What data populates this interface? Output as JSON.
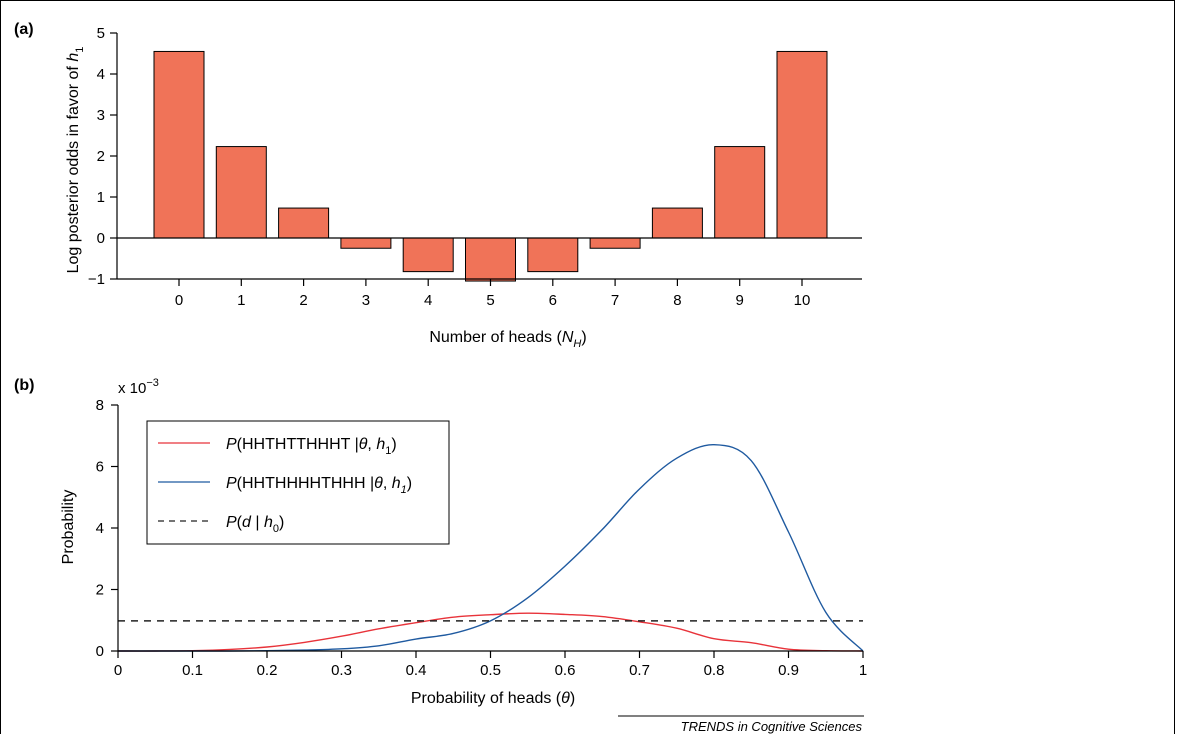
{
  "colors": {
    "bar_fill": "#f07358",
    "red_curve": "#e8333a",
    "blue_curve": "#1f5aa0",
    "dashed": "#222222"
  },
  "panels": {
    "a_label": "(a)",
    "b_label": "(b)"
  },
  "footer": "TRENDS in Cognitive Sciences",
  "chart_data": [
    {
      "id": "a",
      "type": "bar",
      "categories": [
        "0",
        "1",
        "2",
        "3",
        "4",
        "5",
        "6",
        "7",
        "8",
        "9",
        "10"
      ],
      "values": [
        4.55,
        2.23,
        0.73,
        -0.25,
        -0.82,
        -1.05,
        -0.82,
        -0.25,
        0.73,
        2.23,
        4.55
      ],
      "xlabel": {
        "main": "Number of heads (",
        "italic": "N",
        "sub": "H",
        "end": ")"
      },
      "ylabel": {
        "main": "Log posterior odds in favor of ",
        "italic": "h",
        "sub": "1"
      },
      "ylim": [
        -1,
        5
      ],
      "yticks": [
        "−1",
        "0",
        "1",
        "2",
        "3",
        "4",
        "5"
      ],
      "grid": false
    },
    {
      "id": "b",
      "type": "line",
      "xlabel": {
        "main": "Probability of heads (",
        "italic": "θ",
        "end": ")"
      },
      "ylabel": "Probability",
      "scale_note": {
        "base": "x 10",
        "exp": "−3"
      },
      "xlim": [
        0,
        1
      ],
      "ylim": [
        0,
        8
      ],
      "xticks": [
        "0",
        "0.1",
        "0.2",
        "0.3",
        "0.4",
        "0.5",
        "0.6",
        "0.7",
        "0.8",
        "0.9",
        "1"
      ],
      "yticks": [
        "0",
        "2",
        "4",
        "6",
        "8"
      ],
      "legend_position": "top-left",
      "grid": false,
      "series": [
        {
          "legend": {
            "pre": "P",
            "seq": "(HHTHTTHHHT |",
            "theta": "θ",
            "comma": ", ",
            "h": "h",
            "sub": "1",
            "close": ")"
          },
          "style": "solid",
          "color": "red",
          "x": [
            0,
            0.05,
            0.1,
            0.15,
            0.2,
            0.25,
            0.3,
            0.35,
            0.4,
            0.45,
            0.5,
            0.55,
            0.6,
            0.65,
            0.7,
            0.75,
            0.8,
            0.85,
            0.9,
            0.95,
            1
          ],
          "y": [
            0,
            0.0,
            0.01,
            0.05,
            0.13,
            0.28,
            0.48,
            0.72,
            0.92,
            1.1,
            1.18,
            1.23,
            1.19,
            1.12,
            0.95,
            0.74,
            0.4,
            0.27,
            0.06,
            0.01,
            0
          ]
        },
        {
          "legend": {
            "pre": "P",
            "seq": "(HHTHHHHTHHH |",
            "theta": "θ",
            "comma": ", ",
            "h": "h",
            "sub": "1",
            "close": ")"
          },
          "style": "solid",
          "color": "blue",
          "x": [
            0,
            0.05,
            0.1,
            0.15,
            0.2,
            0.25,
            0.3,
            0.35,
            0.4,
            0.45,
            0.5,
            0.55,
            0.6,
            0.65,
            0.7,
            0.75,
            0.8,
            0.85,
            0.9,
            0.95,
            1
          ],
          "y": [
            0,
            0.0,
            0.0,
            0.0,
            0.01,
            0.03,
            0.07,
            0.17,
            0.39,
            0.57,
            0.98,
            1.73,
            2.76,
            3.95,
            5.27,
            6.27,
            6.71,
            6.19,
            3.87,
            1.26,
            0
          ]
        },
        {
          "legend": {
            "pre": "P",
            "seq": "(",
            "d": "d",
            "bar": " | ",
            "h": "h",
            "sub": "0",
            "close": ")"
          },
          "style": "dashed",
          "color": "dashed",
          "x": [
            0,
            1
          ],
          "y": [
            0.98,
            0.98
          ]
        }
      ]
    }
  ]
}
